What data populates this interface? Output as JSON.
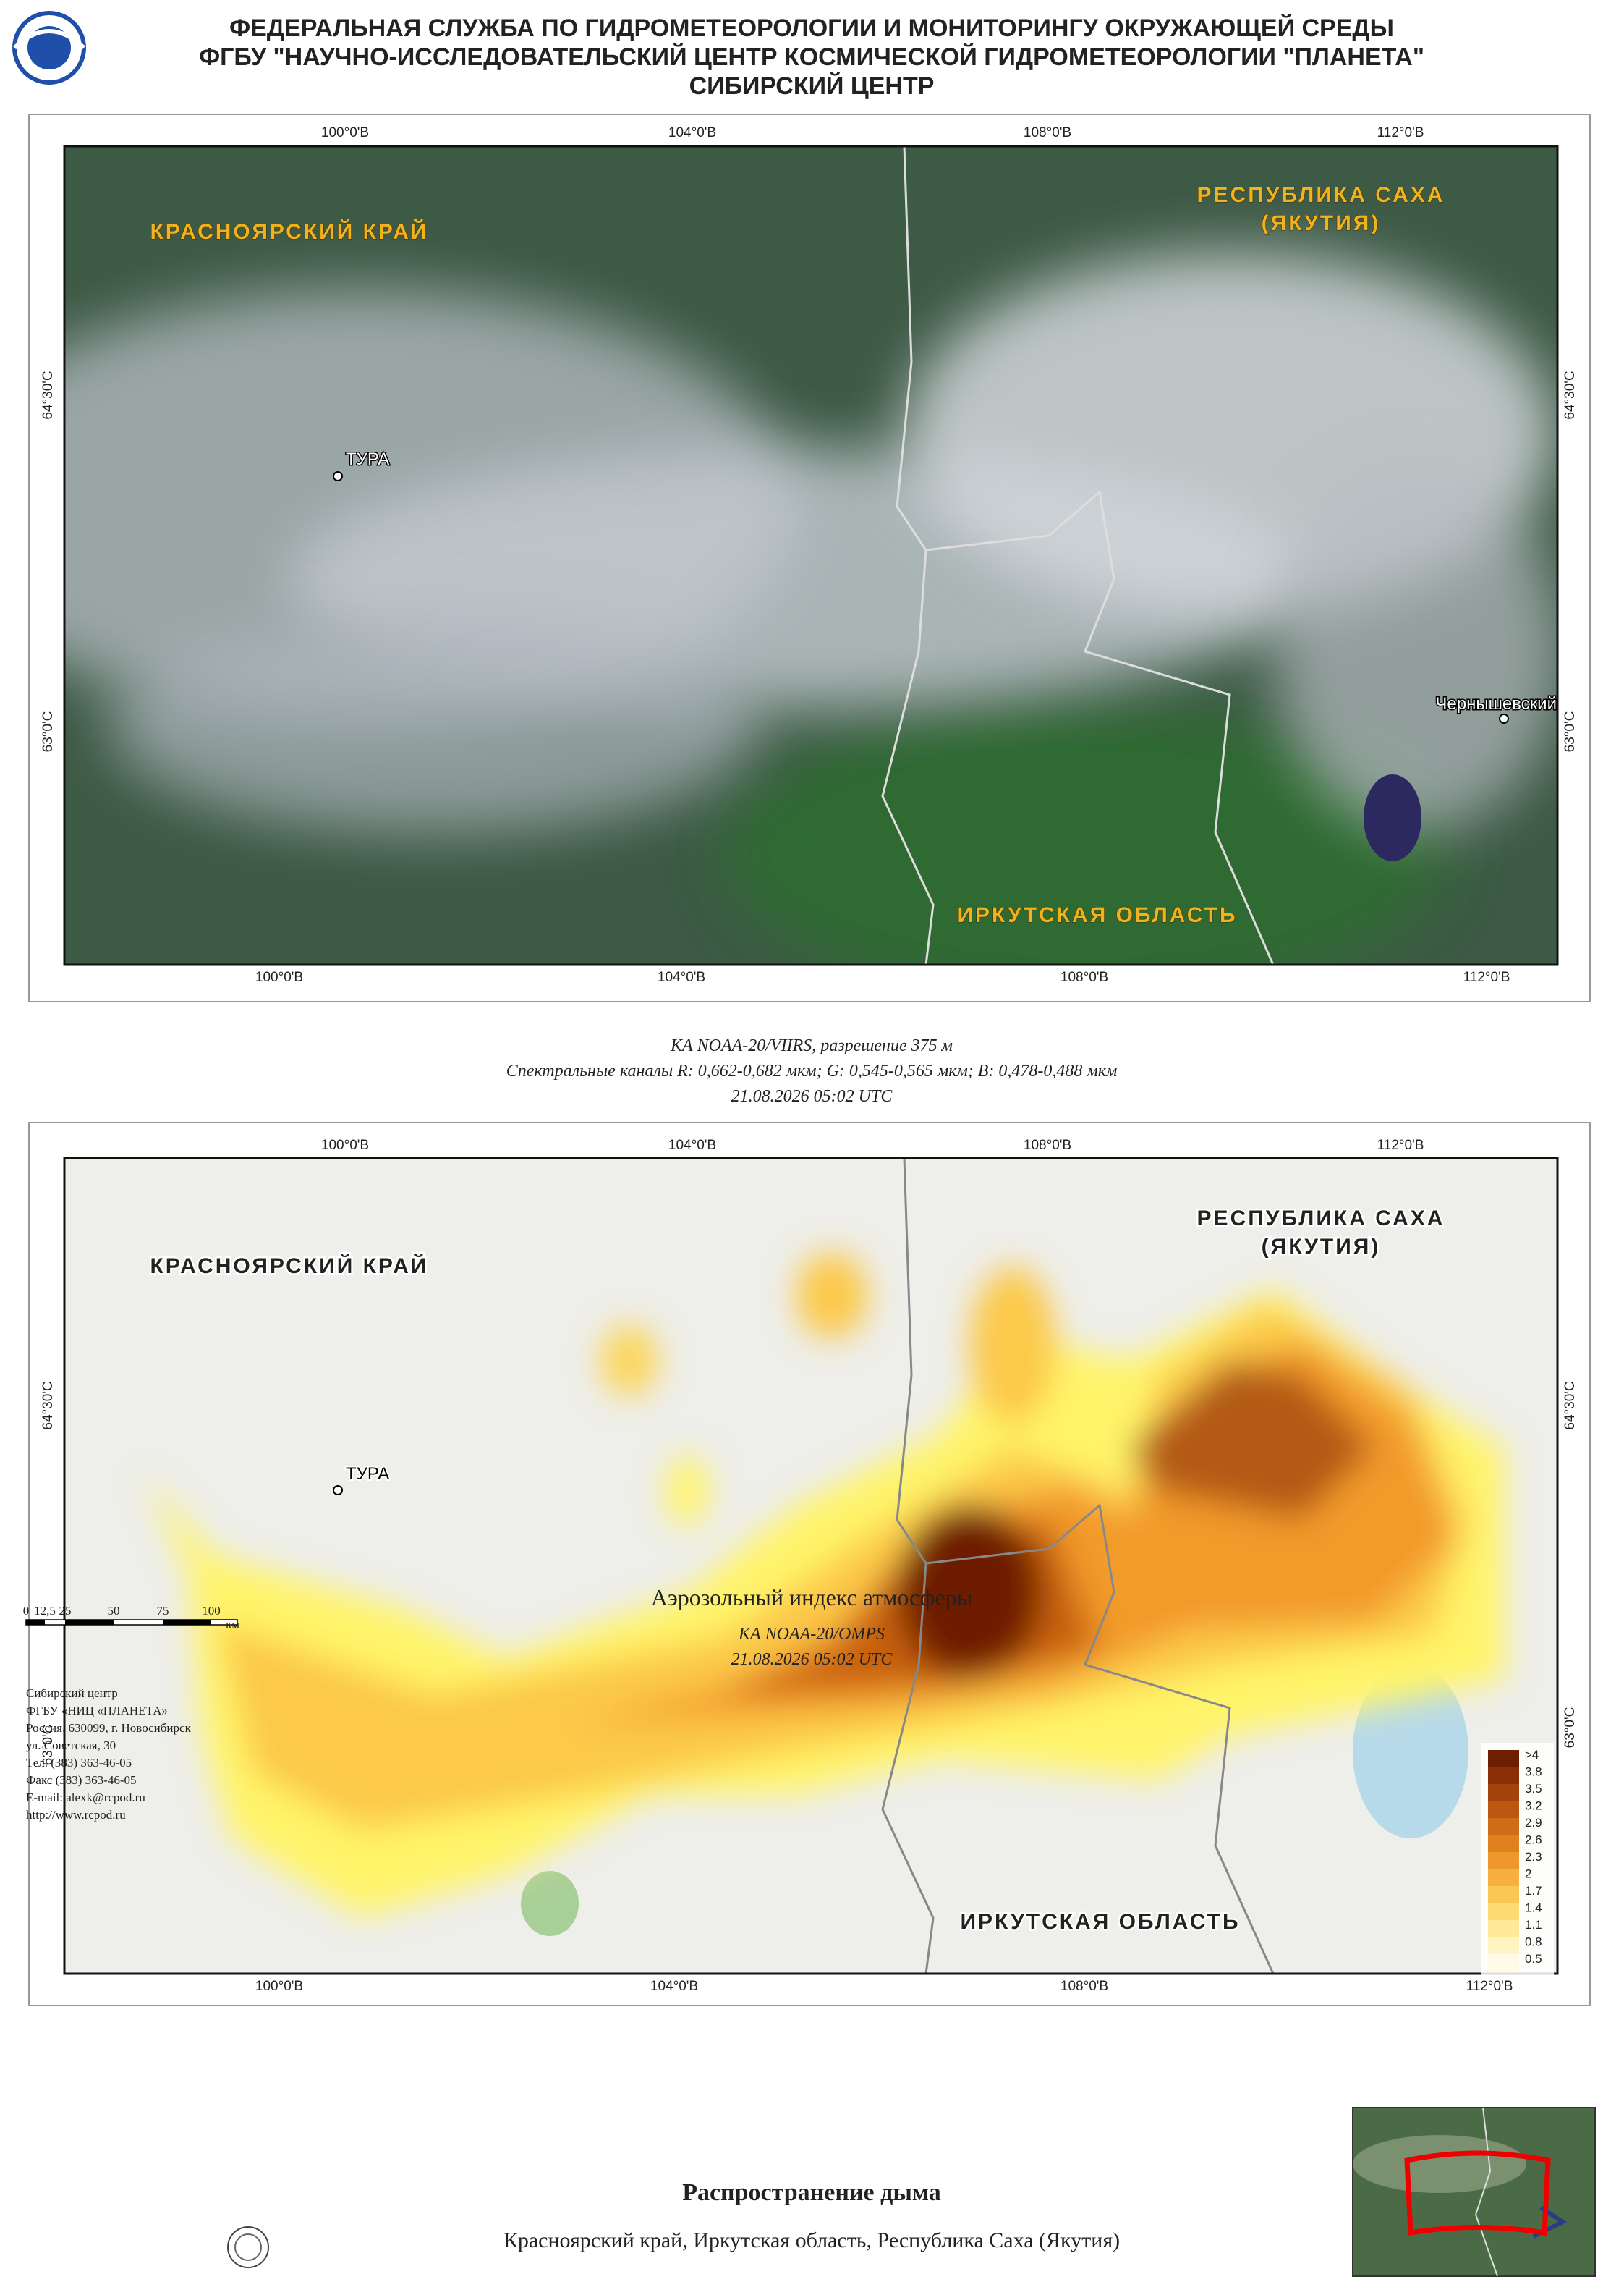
{
  "header": {
    "lines": [
      "ФЕДЕРАЛЬНАЯ СЛУЖБА ПО ГИДРОМЕТЕОРОЛОГИИ И МОНИТОРИНГУ ОКРУЖАЮЩЕЙ СРЕДЫ",
      "ФГБУ \"НАУЧНО-ИССЛЕДОВАТЕЛЬСКИЙ ЦЕНТР КОСМИЧЕСКОЙ ГИДРОМЕТЕОРОЛОГИИ \"ПЛАНЕТА\"",
      "СИБИРСКИЙ ЦЕНТР"
    ]
  },
  "map1": {
    "labels": {
      "krasnoyarsk": "КРАСНОЯРСКИЙ КРАЙ",
      "sakha_1": "РЕСПУБЛИКА САХА",
      "sakha_2": "(ЯКУТИЯ)",
      "tura": "ТУРА",
      "irkutsk": "ИРКУТСКАЯ ОБЛАСТЬ",
      "chernyshevsky": "Чернышевский"
    },
    "grid_top": [
      "100°0'В",
      "104°0'В",
      "108°0'В",
      "112°0'В"
    ],
    "grid_bottom": [
      "100°0'В",
      "104°0'В",
      "108°0'В",
      "112°0'В"
    ],
    "grid_left": [
      "64°30'С",
      "63°0'С"
    ],
    "grid_right": [
      "64°30'С",
      "63°0'С"
    ]
  },
  "caption1": {
    "lines": [
      "КА NOAA-20/VIIRS, разрешение 375 м",
      "Спектральные каналы R: 0,662-0,682 мкм; G: 0,545-0,565 мкм; B: 0,478-0,488 мкм",
      "21.08.2026  05:02 UTC"
    ]
  },
  "map2": {
    "labels": {
      "krasnoyarsk": "КРАСНОЯРСКИЙ КРАЙ",
      "sakha_1": "РЕСПУБЛИКА САХА",
      "sakha_2": "(ЯКУТИЯ)",
      "tura": "ТУРА",
      "irkutsk": "ИРКУТСКАЯ ОБЛАСТЬ"
    },
    "grid_top": [
      "100°0'В",
      "104°0'В",
      "108°0'В",
      "112°0'В"
    ],
    "grid_bottom": [
      "100°0'В",
      "104°0'В",
      "108°0'В",
      "112°0'В"
    ],
    "grid_left": [
      "64°30'С",
      "63°0'С"
    ],
    "grid_right": [
      "64°30'С",
      "63°0'С"
    ],
    "legend": [
      ">4",
      "3.8",
      "3.5",
      "3.2",
      "2.9",
      "2.6",
      "2.3",
      "2",
      "1.7",
      "1.4",
      "1.1",
      "0.8",
      "0.5"
    ]
  },
  "caption2": {
    "title": "Аэрозольный индекс атмосферы",
    "lines": [
      "КА NOAA-20/OMPS",
      "21.08.2026  05:02 UTC"
    ]
  },
  "scale_bar": {
    "labels": [
      "0",
      "12,5",
      "25",
      "50",
      "75",
      "100"
    ],
    "unit": "км"
  },
  "footer": {
    "lines": [
      "Сибирский центр",
      "ФГБУ «НИЦ «ПЛАНЕТА»",
      "Россия, 630099, г. Новосибирск",
      "ул. Советская, 30",
      "Тел. (383) 363-46-05",
      "Факс (383) 363-46-05",
      "E-mail: alexk@rcpod.ru",
      "http://www.rcpod.ru"
    ]
  },
  "product": {
    "title": "Распространение дыма",
    "subtitle": "Красноярский край, Иркутская область, Республика Саха (Якутия)"
  }
}
